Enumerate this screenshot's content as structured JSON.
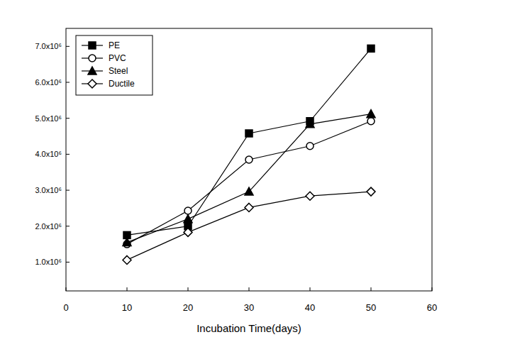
{
  "chart_data": {
    "type": "line",
    "x_label": "Incubation Time(days)",
    "xlim": [
      0,
      60
    ],
    "xticks": [
      0,
      10,
      20,
      30,
      40,
      50,
      60
    ],
    "ylim": [
      200000,
      7500000
    ],
    "yticks": [
      {
        "value": 1000000,
        "label": "1.0x10⁶"
      },
      {
        "value": 2000000,
        "label": "2.0x10⁶"
      },
      {
        "value": 3000000,
        "label": "3.0x10⁶"
      },
      {
        "value": 4000000,
        "label": "4.0x10⁶"
      },
      {
        "value": 5000000,
        "label": "5.0x10⁶"
      },
      {
        "value": 6000000,
        "label": "6.0x10⁶"
      },
      {
        "value": 7000000,
        "label": "7.0x10⁶"
      }
    ],
    "grid": false,
    "legend": "upper-left",
    "x": [
      10,
      20,
      30,
      40,
      50
    ],
    "series": [
      {
        "name": "PE",
        "color": "#000000",
        "marker": "square-filled",
        "values": [
          1750000,
          2000000,
          4580000,
          4920000,
          6940000
        ]
      },
      {
        "name": "PVC",
        "color": "#000000",
        "marker": "circle-open",
        "values": [
          1500000,
          2430000,
          3850000,
          4230000,
          4920000
        ]
      },
      {
        "name": "Steel",
        "color": "#000000",
        "marker": "triangle-filled",
        "values": [
          1550000,
          2200000,
          2960000,
          4840000,
          5120000
        ]
      },
      {
        "name": "Ductile",
        "color": "#000000",
        "marker": "diamond-open",
        "values": [
          1060000,
          1830000,
          2520000,
          2840000,
          2960000
        ]
      }
    ]
  }
}
